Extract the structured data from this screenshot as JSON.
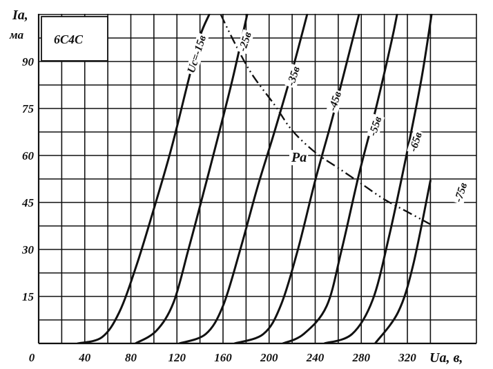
{
  "chart_data": {
    "type": "line",
    "title": "6С4С",
    "ylabel": "Iа,",
    "yunit": "ма",
    "xlabel": "Uа, в,",
    "xlim": [
      0,
      340
    ],
    "ylim": [
      0,
      105
    ],
    "x_ticks": [
      0,
      40,
      80,
      120,
      160,
      200,
      240,
      280,
      320
    ],
    "x_tick_labels": [
      "0",
      "40",
      "80",
      "120",
      "160",
      "200",
      "240",
      "280",
      "320"
    ],
    "y_ticks": [
      15,
      30,
      45,
      60,
      75,
      90
    ],
    "y_tick_labels": [
      "15",
      "30",
      "45",
      "60",
      "75",
      "90"
    ],
    "grid": true,
    "series": [
      {
        "name": "Uс=-15в",
        "points": [
          [
            34,
            0
          ],
          [
            55,
            2
          ],
          [
            70,
            10
          ],
          [
            85,
            25
          ],
          [
            100,
            43
          ],
          [
            115,
            62
          ],
          [
            130,
            84
          ],
          [
            140,
            98
          ],
          [
            148,
            105
          ]
        ]
      },
      {
        "name": "-25в",
        "points": [
          [
            84,
            0
          ],
          [
            102,
            4
          ],
          [
            117,
            13
          ],
          [
            130,
            30
          ],
          [
            143,
            48
          ],
          [
            155,
            65
          ],
          [
            168,
            84
          ],
          [
            181,
            105
          ]
        ]
      },
      {
        "name": "-35в",
        "points": [
          [
            122,
            0
          ],
          [
            145,
            3
          ],
          [
            160,
            12
          ],
          [
            175,
            30
          ],
          [
            190,
            50
          ],
          [
            205,
            68
          ],
          [
            220,
            87
          ],
          [
            233,
            105
          ]
        ]
      },
      {
        "name": "-45в",
        "points": [
          [
            170,
            0
          ],
          [
            195,
            3
          ],
          [
            210,
            12
          ],
          [
            225,
            30
          ],
          [
            240,
            52
          ],
          [
            255,
            72
          ],
          [
            269,
            92
          ],
          [
            278,
            105
          ]
        ]
      },
      {
        "name": "-55в",
        "points": [
          [
            212,
            0
          ],
          [
            230,
            3
          ],
          [
            250,
            12
          ],
          [
            263,
            30
          ],
          [
            278,
            54
          ],
          [
            292,
            74
          ],
          [
            306,
            96
          ],
          [
            311,
            105
          ]
        ]
      },
      {
        "name": "-65в",
        "points": [
          [
            248,
            0
          ],
          [
            272,
            3
          ],
          [
            290,
            14
          ],
          [
            304,
            34
          ],
          [
            318,
            58
          ],
          [
            332,
            84
          ],
          [
            341,
            105
          ]
        ]
      },
      {
        "name": "-75в",
        "points": [
          [
            292,
            0
          ],
          [
            312,
            10
          ],
          [
            325,
            25
          ],
          [
            340,
            52
          ]
        ]
      },
      {
        "name": "Pа",
        "points": [
          [
            158,
            105
          ],
          [
            170,
            96
          ],
          [
            185,
            86
          ],
          [
            205,
            76
          ],
          [
            220,
            68
          ],
          [
            240,
            61
          ],
          [
            260,
            56
          ],
          [
            280,
            51
          ],
          [
            300,
            46
          ],
          [
            320,
            42
          ],
          [
            340,
            38
          ]
        ]
      }
    ]
  }
}
